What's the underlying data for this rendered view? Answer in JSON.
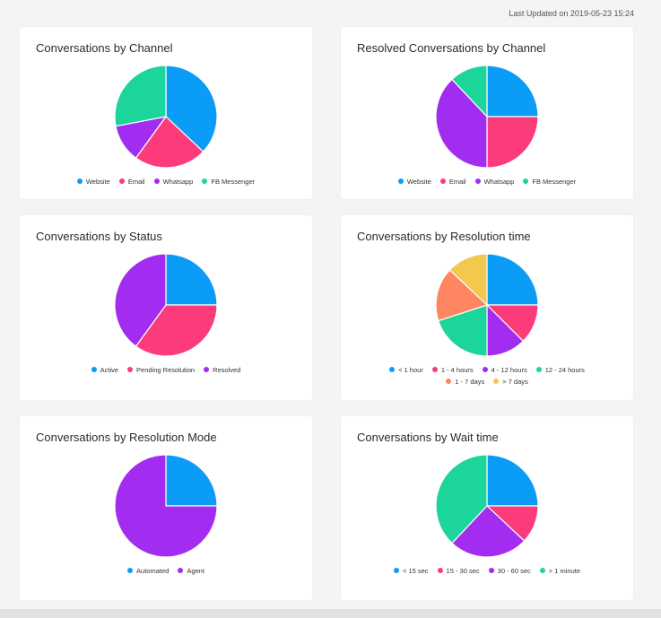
{
  "header": {
    "last_updated": "Last Updated on 2019-05-23  15:24"
  },
  "colors": {
    "blue": "#0b9cf7",
    "pink": "#fb3b7a",
    "purple": "#a22df0",
    "green": "#1cd59a",
    "orange": "#fd8560",
    "yellow": "#f2c94c"
  },
  "chart_data": [
    {
      "type": "pie",
      "title": "Conversations by Channel",
      "labels": [
        "Website",
        "Email",
        "Whatsapp",
        "FB Messenger"
      ],
      "values": [
        37,
        23,
        12,
        28
      ],
      "colors": [
        "#0b9cf7",
        "#fb3b7a",
        "#a22df0",
        "#1cd59a"
      ]
    },
    {
      "type": "pie",
      "title": "Resolved Conversations by Channel",
      "labels": [
        "Website",
        "Email",
        "Whatsapp",
        "FB Messenger"
      ],
      "values": [
        25,
        25,
        38,
        12
      ],
      "colors": [
        "#0b9cf7",
        "#fb3b7a",
        "#a22df0",
        "#1cd59a"
      ]
    },
    {
      "type": "pie",
      "title": "Conversations by Status",
      "labels": [
        "Active",
        "Pending Resolution",
        "Resolved"
      ],
      "values": [
        25,
        35,
        40
      ],
      "colors": [
        "#0b9cf7",
        "#fb3b7a",
        "#a22df0"
      ]
    },
    {
      "type": "pie",
      "title": "Conversations by Resolution time",
      "labels": [
        "< 1 hour",
        "1 - 4 hours",
        "4 - 12 hours",
        "12 - 24 hours",
        "1 - 7 days",
        "> 7 days"
      ],
      "values": [
        25,
        12.5,
        12.5,
        20,
        17,
        13
      ],
      "colors": [
        "#0b9cf7",
        "#fb3b7a",
        "#a22df0",
        "#1cd59a",
        "#fd8560",
        "#f2c94c"
      ],
      "legend_rows": [
        [
          0,
          1,
          2,
          3
        ],
        [
          4,
          5
        ]
      ]
    },
    {
      "type": "pie",
      "title": "Conversations by Resolution Mode",
      "labels": [
        "Automated",
        "Agent"
      ],
      "values": [
        25,
        75
      ],
      "colors": [
        "#0b9cf7",
        "#a22df0"
      ]
    },
    {
      "type": "pie",
      "title": "Conversations by Wait time",
      "labels": [
        "< 15 sec",
        "15 - 30 sec",
        "30 - 60 sec",
        "> 1 minute"
      ],
      "values": [
        25,
        12,
        25,
        38
      ],
      "colors": [
        "#0b9cf7",
        "#fb3b7a",
        "#a22df0",
        "#1cd59a"
      ]
    }
  ]
}
